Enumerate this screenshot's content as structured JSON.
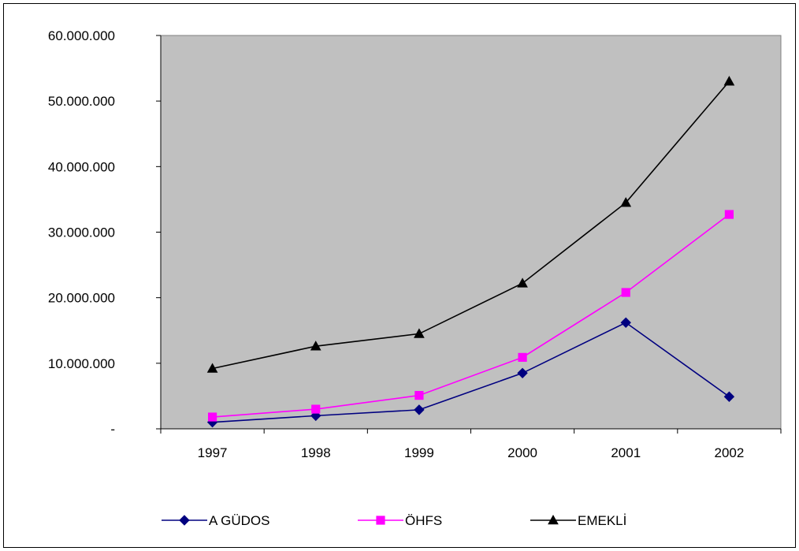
{
  "chart_data": {
    "type": "line",
    "categories": [
      "1997",
      "1998",
      "1999",
      "2000",
      "2001",
      "2002"
    ],
    "ylim": [
      0,
      60000000
    ],
    "ytick_values": [
      0,
      10000000,
      20000000,
      30000000,
      40000000,
      50000000,
      60000000
    ],
    "ytick_labels": [
      "-",
      "10.000.000",
      "20.000.000",
      "30.000.000",
      "40.000.000",
      "50.000.000",
      "60.000.000"
    ],
    "plot_background": "#c0c0c0",
    "grid": false,
    "legend_position": "bottom",
    "series": [
      {
        "name": "A GÜDOS",
        "color": "#000080",
        "marker": "diamond",
        "values": [
          1000000,
          2000000,
          2900000,
          8500000,
          16200000,
          4900000
        ]
      },
      {
        "name": "ÖHFS",
        "color": "#ff00ff",
        "marker": "square",
        "values": [
          1800000,
          3000000,
          5100000,
          10900000,
          20800000,
          32700000
        ]
      },
      {
        "name": "EMEKLİ",
        "color": "#000000",
        "marker": "triangle",
        "values": [
          9200000,
          12600000,
          14500000,
          22200000,
          34500000,
          53000000
        ]
      }
    ]
  }
}
